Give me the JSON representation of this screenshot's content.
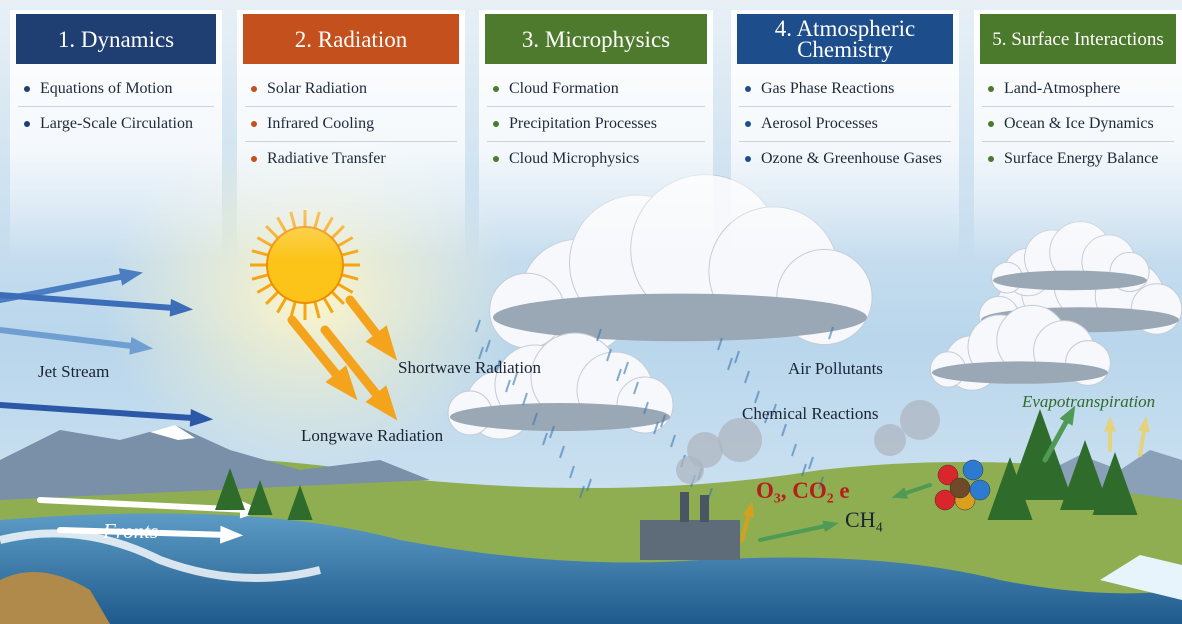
{
  "panels": [
    {
      "title": "1. Dynamics",
      "color": "#1f3e72",
      "items": [
        "Equations of Motion",
        "Large-Scale Circulation"
      ]
    },
    {
      "title": "2. Radiation",
      "color": "#c4501d",
      "items": [
        "Solar Radiation",
        "Infrared Cooling",
        "Radiative Transfer"
      ]
    },
    {
      "title": "3. Microphysics",
      "color": "#4d7a2c",
      "items": [
        "Cloud Formation",
        "Precipitation Processes",
        "Cloud Microphysics"
      ]
    },
    {
      "title": "4. Atmospheric Chemistry",
      "color": "#1e4d8c",
      "items": [
        "Gas Phase Reactions",
        "Aerosol Processes",
        "Ozone & Greenhouse Gases"
      ]
    },
    {
      "title": "5. Surface Interactions",
      "color": "#4b7a2d",
      "items": [
        "Land-Atmosphere",
        "Ocean & Ice Dynamics",
        "Surface Energy Balance"
      ]
    }
  ],
  "scene": {
    "jet_stream": "Jet Stream",
    "fronts": "Fronts",
    "shortwave": "Shortwave Radiation",
    "longwave": "Longwave Radiation",
    "air_pollutants": "Air Pollutants",
    "chemical_reactions": "Chemical Reactions",
    "evapotranspiration": "Evapotranspiration",
    "gases_line1": "O₃, CO₂ e",
    "gases_line2": "CH₄"
  }
}
